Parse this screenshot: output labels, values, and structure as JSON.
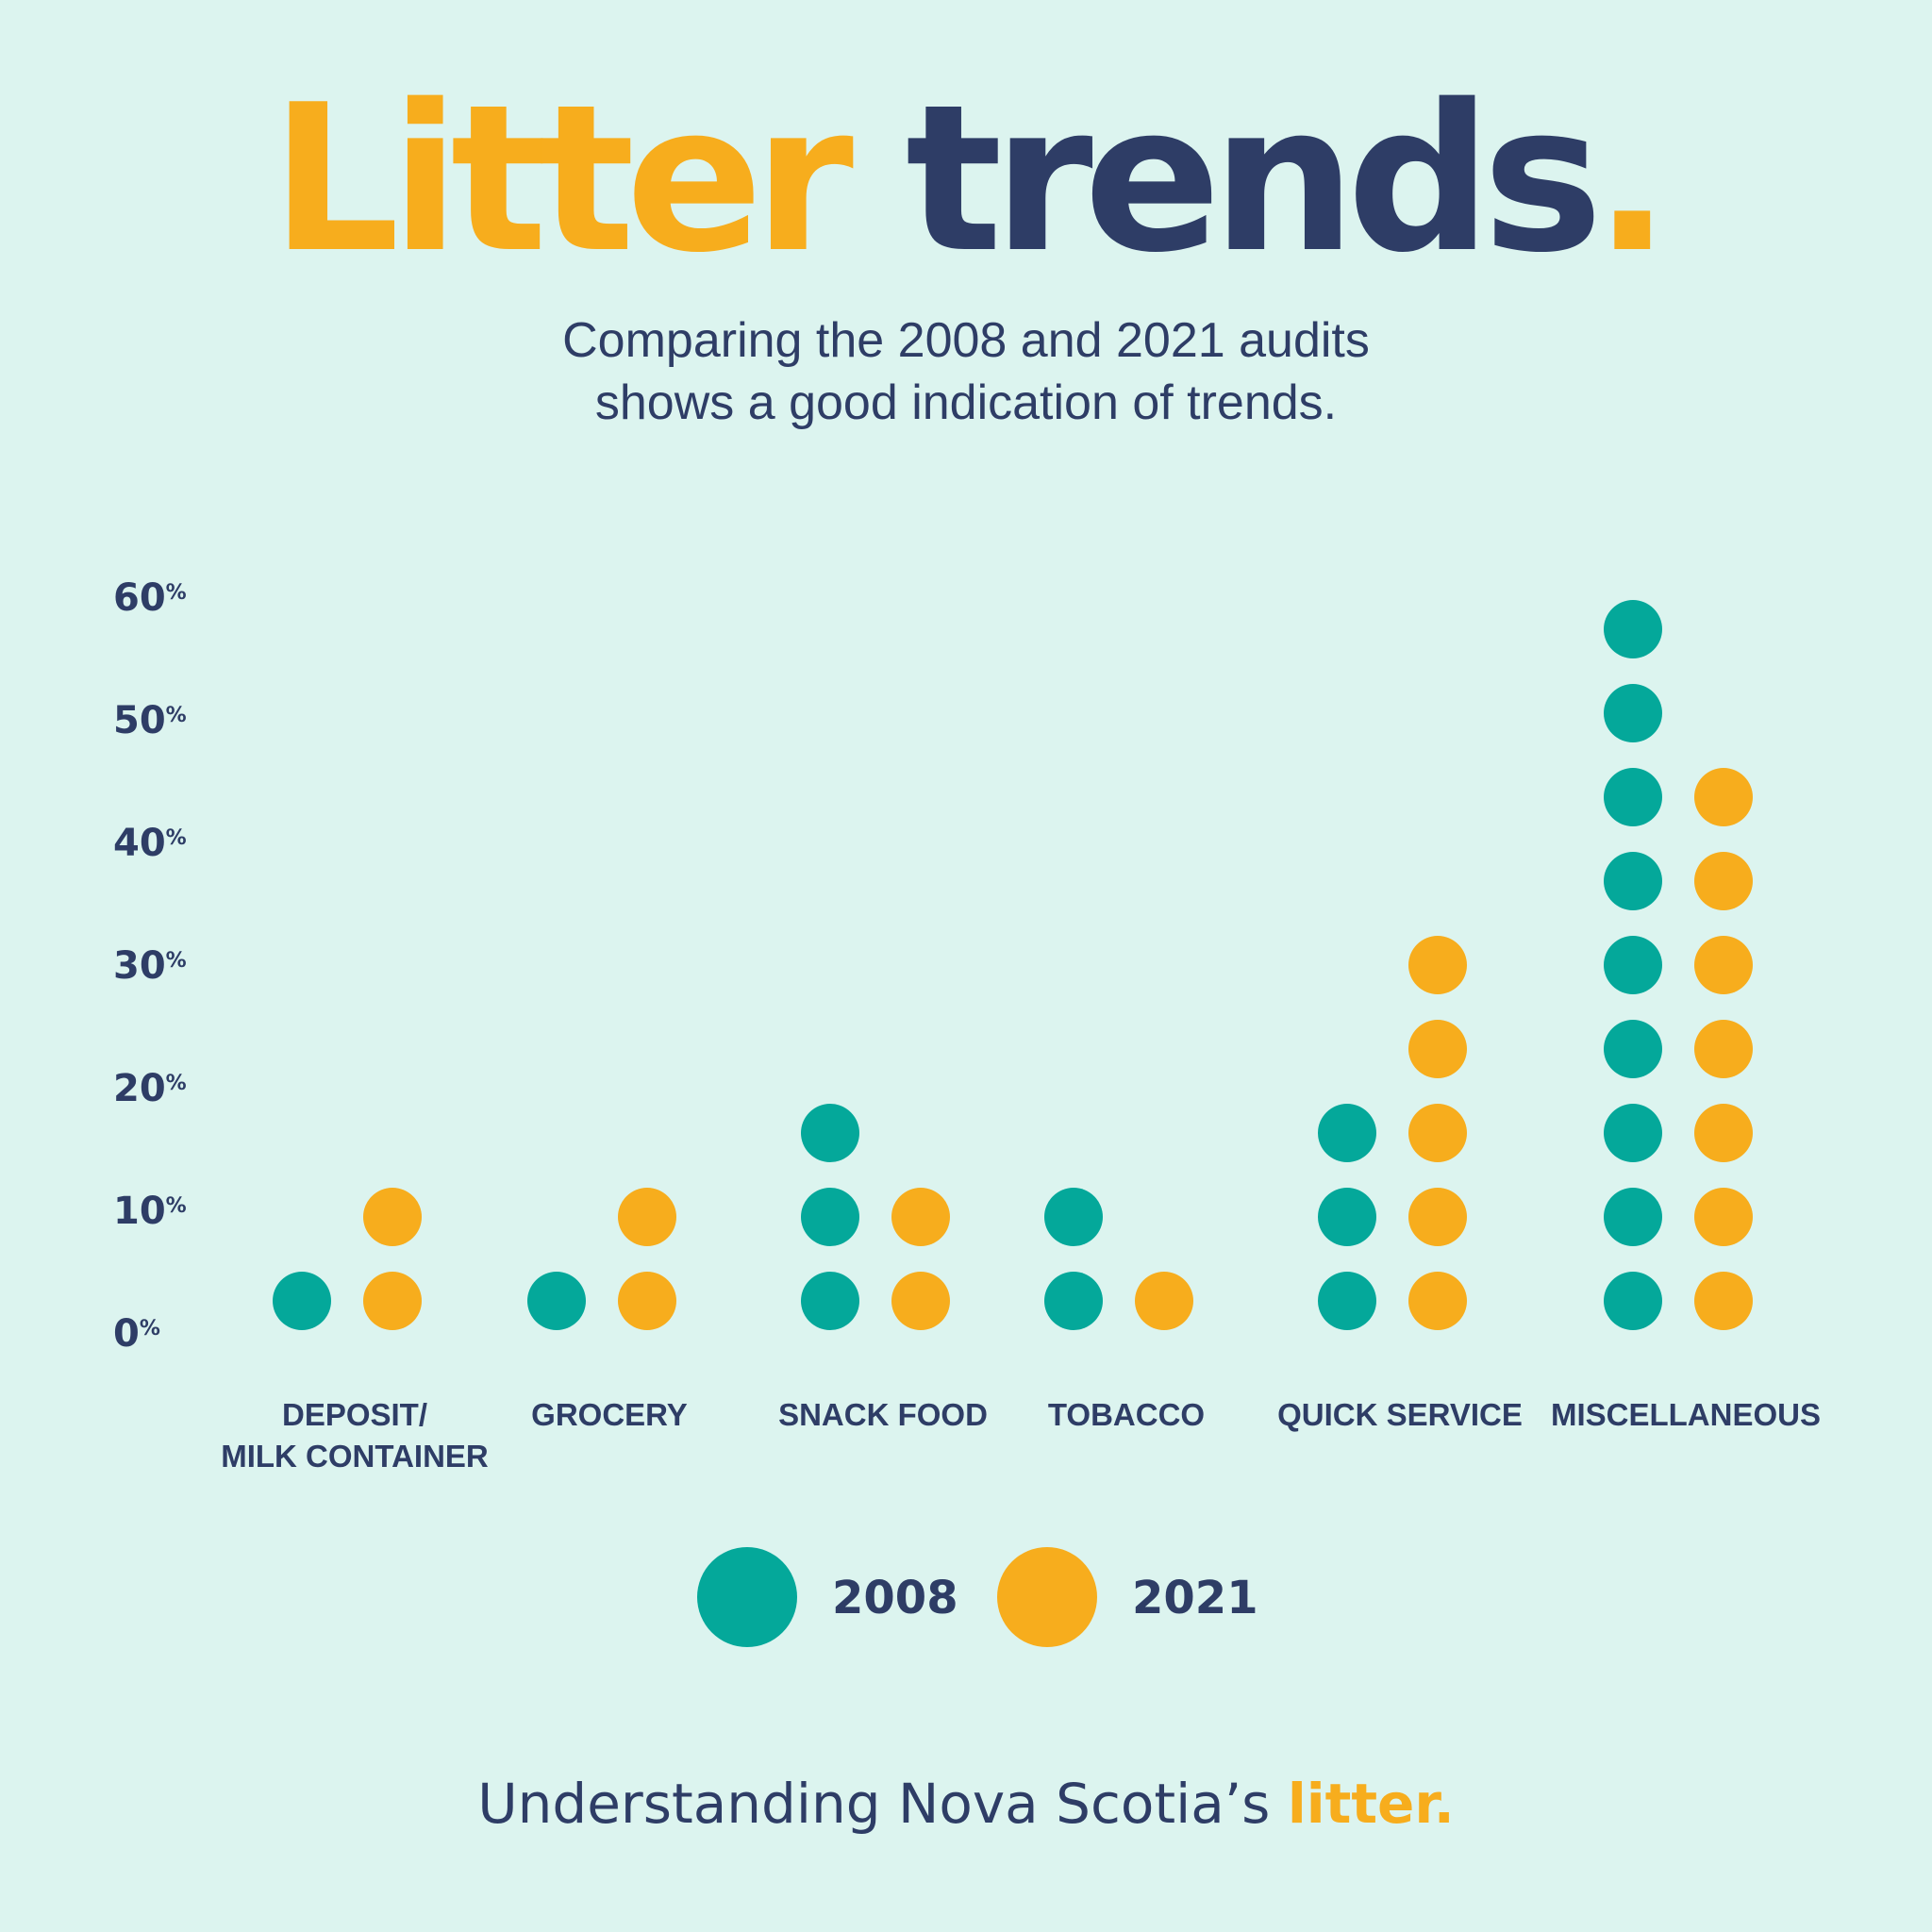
{
  "header": {
    "title_part1": "Litter",
    "title_part2": "trends",
    "title_dot": ".",
    "subtitle_line1": "Comparing the 2008 and 2021 audits",
    "subtitle_line2": "shows a good indication of trends."
  },
  "footer": {
    "text": "Understanding Nova Scotia’s",
    "accent": "litter."
  },
  "colors": {
    "background": "#dcf4ef",
    "navy": "#2e3d66",
    "series_2008": "#04a89a",
    "series_2021": "#f7ad1d"
  },
  "chart_data": {
    "type": "dot-column",
    "title": "",
    "xlabel": "",
    "ylabel": "",
    "ylim": [
      0,
      60
    ],
    "y_ticks": [
      "0",
      "10",
      "20",
      "30",
      "40",
      "50",
      "60"
    ],
    "y_tick_suffix": "%",
    "categories": [
      [
        "DEPOSIT/",
        "MILK CONTAINER"
      ],
      [
        "GROCERY"
      ],
      [
        "SNACK FOOD"
      ],
      [
        "TOBACCO"
      ],
      [
        "QUICK SERVICE"
      ],
      [
        "MISCELLANEOUS"
      ]
    ],
    "series": [
      {
        "name": "2008",
        "color": "#04a89a",
        "dots": [
          1,
          1,
          3,
          2,
          3,
          9
        ]
      },
      {
        "name": "2021",
        "color": "#f7ad1d",
        "dots": [
          2,
          2,
          2,
          1,
          5,
          7
        ]
      }
    ],
    "grid": false,
    "legend": "bottom-center"
  }
}
